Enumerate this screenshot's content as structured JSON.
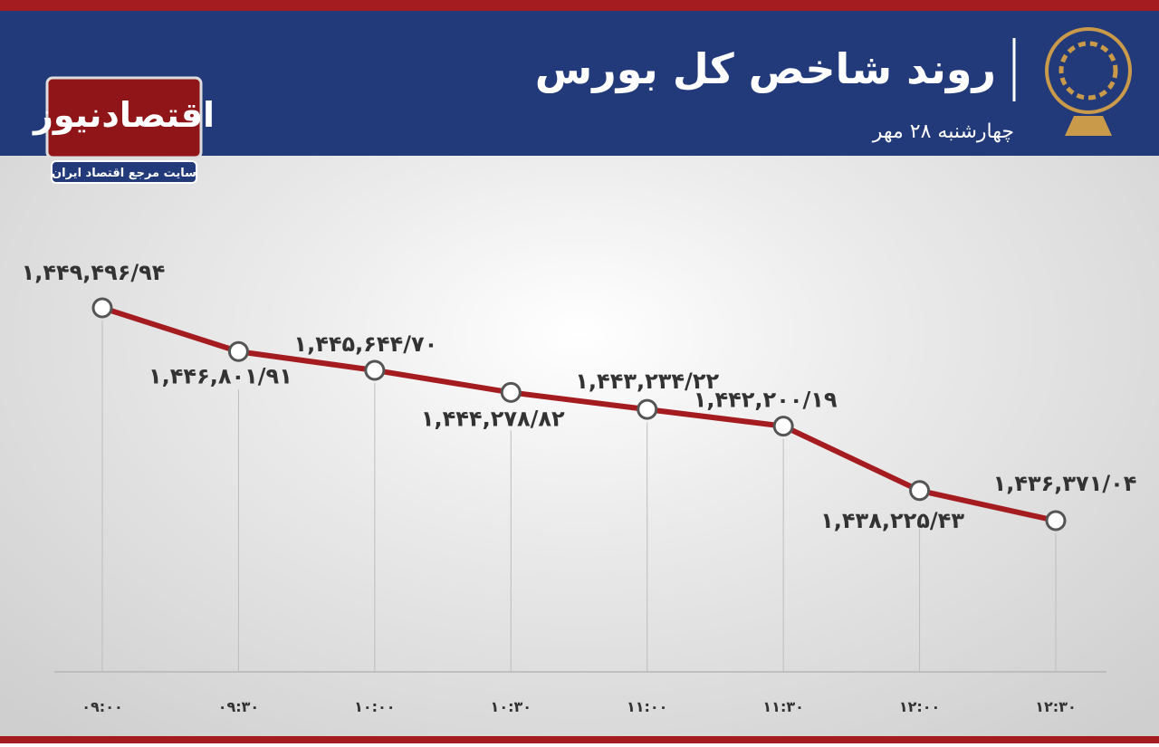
{
  "brand": {
    "name": "اقتصادنیوز",
    "tagline": "سایت مرجع اقتصاد ایران"
  },
  "chart_data": {
    "type": "line",
    "title": "روند شاخص کل بورس",
    "subtitle": "چهارشنبه ۲۸ مهر",
    "categories": [
      "۰۹:۰۰",
      "۰۹:۳۰",
      "۱۰:۰۰",
      "۱۰:۳۰",
      "۱۱:۰۰",
      "۱۱:۳۰",
      "۱۲:۰۰",
      "۱۲:۳۰"
    ],
    "values": [
      1449496.94,
      1446801.91,
      1445644.7,
      1444278.82,
      1443234.22,
      1442200.19,
      1438225.43,
      1436371.04
    ],
    "value_labels": [
      "۱,۴۴۹,۴۹۶/۹۴",
      "۱,۴۴۶,۸۰۱/۹۱",
      "۱,۴۴۵,۶۴۴/۷۰",
      "۱,۴۴۴,۲۷۸/۸۲",
      "۱,۴۴۳,۲۳۴/۲۲",
      "۱,۴۴۲,۲۰۰/۱۹",
      "۱,۴۳۸,۲۲۵/۴۳",
      "۱,۴۳۶,۳۷۱/۰۴"
    ],
    "color": "#a51c20"
  }
}
